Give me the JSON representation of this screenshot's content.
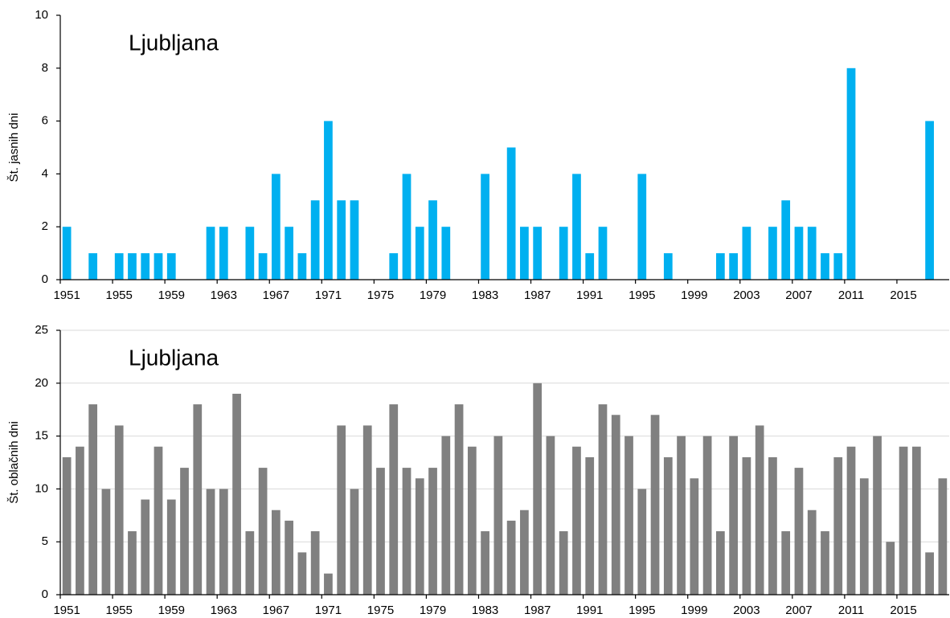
{
  "chart_data": [
    {
      "type": "bar",
      "ylabel": "Št. jasnih dni",
      "annotation": "Ljubljana",
      "categories": [
        "1951",
        null,
        null,
        null,
        "1955",
        null,
        null,
        null,
        "1959",
        null,
        null,
        null,
        "1963",
        null,
        null,
        null,
        "1967",
        null,
        null,
        null,
        "1971",
        null,
        null,
        null,
        "1975",
        null,
        null,
        null,
        "1979",
        null,
        null,
        null,
        "1983",
        null,
        null,
        null,
        "1987",
        null,
        null,
        null,
        "1991",
        null,
        null,
        null,
        "1995",
        null,
        null,
        null,
        "1999",
        null,
        null,
        null,
        "2003",
        null,
        null,
        null,
        "2007",
        null,
        null,
        null,
        "2011",
        null,
        null,
        null,
        "2015",
        null,
        null
      ],
      "values": [
        2,
        0,
        1,
        0,
        1,
        1,
        1,
        1,
        1,
        0,
        0,
        2,
        2,
        0,
        2,
        1,
        4,
        2,
        1,
        3,
        6,
        3,
        3,
        0,
        0,
        1,
        4,
        2,
        3,
        2,
        0,
        0,
        4,
        0,
        5,
        2,
        2,
        0,
        2,
        4,
        1,
        2,
        0,
        0,
        4,
        0,
        1,
        0,
        0,
        0,
        1,
        1,
        2,
        0,
        2,
        3,
        2,
        2,
        1,
        1,
        8,
        0,
        0,
        0,
        0,
        0,
        6
      ],
      "color": "#00b0f0",
      "ylim": [
        0,
        10
      ],
      "yticks": [
        0,
        2,
        4,
        6,
        8,
        10
      ],
      "grid": false
    },
    {
      "type": "bar",
      "ylabel": "Št. oblačnih dni",
      "annotation": "Ljubljana",
      "categories": [
        "1951",
        null,
        null,
        null,
        "1955",
        null,
        null,
        null,
        "1959",
        null,
        null,
        null,
        "1963",
        null,
        null,
        null,
        "1967",
        null,
        null,
        null,
        "1971",
        null,
        null,
        null,
        "1975",
        null,
        null,
        null,
        "1979",
        null,
        null,
        null,
        "1983",
        null,
        null,
        null,
        "1987",
        null,
        null,
        null,
        "1991",
        null,
        null,
        null,
        "1995",
        null,
        null,
        null,
        "1999",
        null,
        null,
        null,
        "2003",
        null,
        null,
        null,
        "2007",
        null,
        null,
        null,
        "2011",
        null,
        null,
        null,
        "2015",
        null,
        null,
        null
      ],
      "values": [
        13,
        14,
        18,
        10,
        16,
        6,
        9,
        14,
        9,
        12,
        18,
        10,
        10,
        19,
        6,
        12,
        8,
        7,
        4,
        6,
        2,
        16,
        10,
        16,
        12,
        18,
        12,
        11,
        12,
        15,
        18,
        14,
        6,
        15,
        7,
        8,
        20,
        15,
        6,
        14,
        13,
        18,
        17,
        15,
        10,
        17,
        13,
        15,
        11,
        15,
        6,
        15,
        13,
        16,
        13,
        6,
        12,
        8,
        6,
        13,
        14,
        11,
        15,
        5,
        14,
        14,
        4,
        11
      ],
      "color": "#808080",
      "ylim": [
        0,
        25
      ],
      "yticks": [
        0,
        5,
        10,
        15,
        20,
        25
      ],
      "grid": true
    }
  ]
}
